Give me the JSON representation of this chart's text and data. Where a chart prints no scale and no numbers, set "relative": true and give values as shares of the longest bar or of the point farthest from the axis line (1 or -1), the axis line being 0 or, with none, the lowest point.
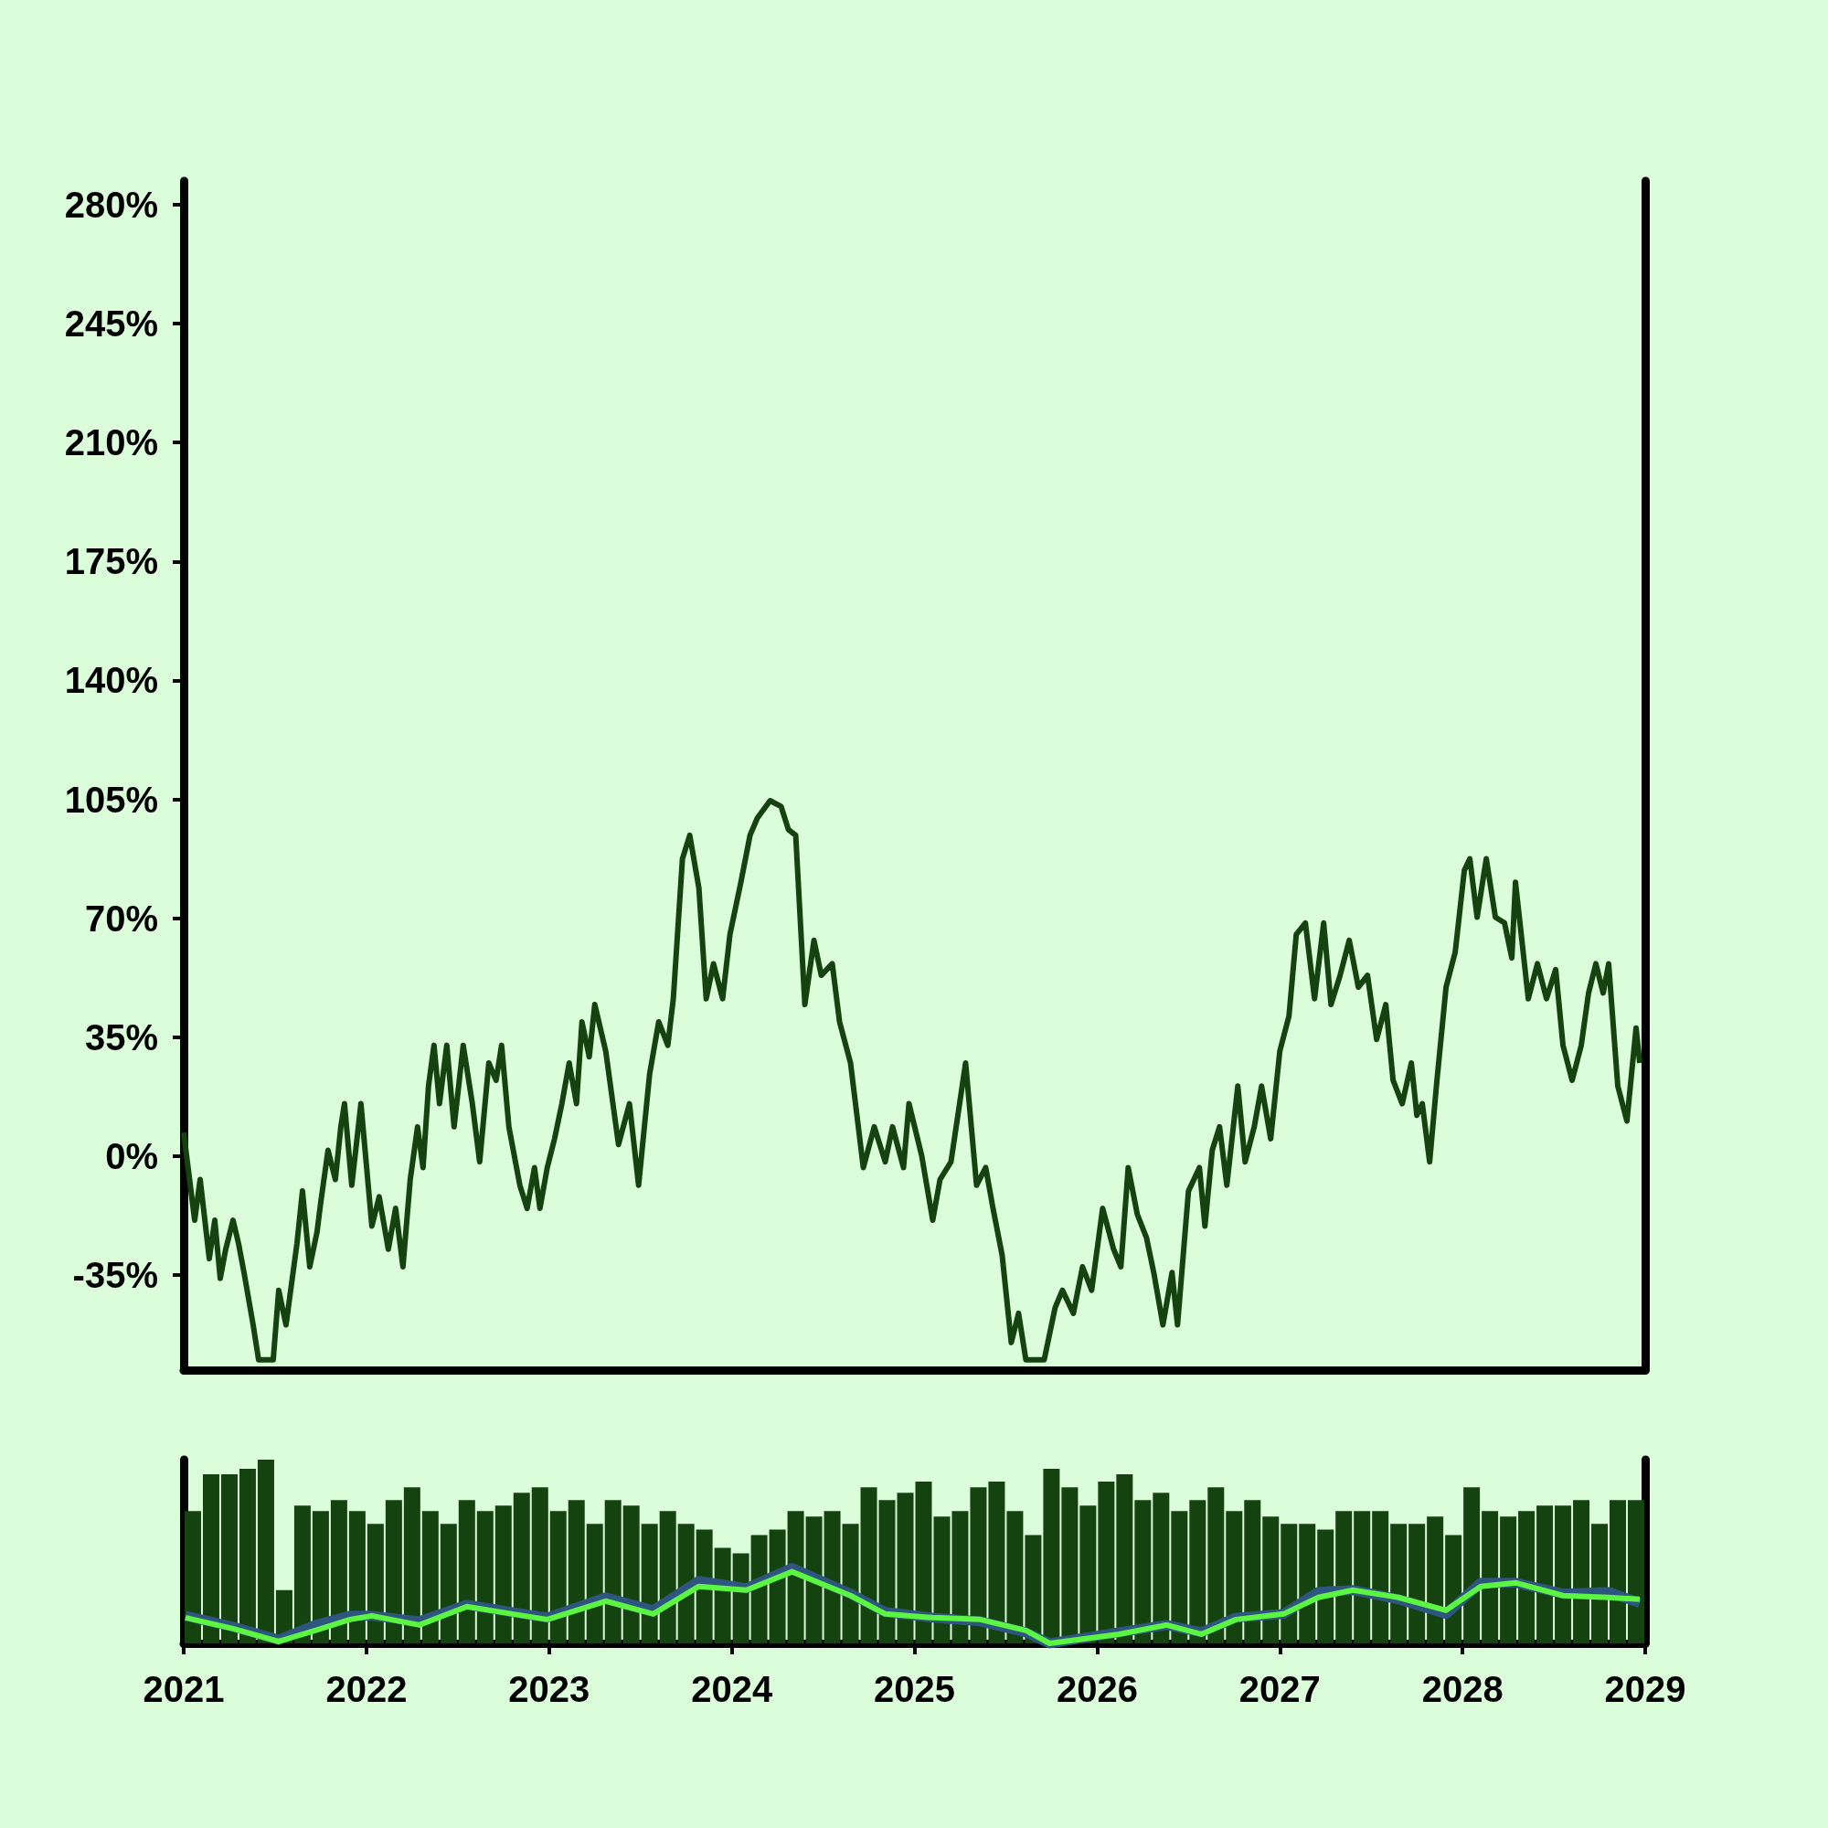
{
  "chart_data": [
    {
      "type": "line",
      "xlim": [
        2021,
        2029
      ],
      "ylim": [
        -63,
        287
      ],
      "tick_labels": "y",
      "yticks": [
        {
          "value": -35,
          "label": "-35%"
        },
        {
          "value": 0,
          "label": "0%"
        },
        {
          "value": 35,
          "label": "35%"
        },
        {
          "value": 70,
          "label": "70%"
        },
        {
          "value": 105,
          "label": "105%"
        },
        {
          "value": 140,
          "label": "140%"
        },
        {
          "value": 175,
          "label": "175%"
        },
        {
          "value": 210,
          "label": "210%"
        },
        {
          "value": 245,
          "label": "245%"
        },
        {
          "value": 280,
          "label": "280%"
        }
      ],
      "x": [
        2021.0,
        2021.06,
        2021.09,
        2021.14,
        2021.17,
        2021.2,
        2021.23,
        2021.27,
        2021.3,
        2021.33,
        2021.38,
        2021.41,
        2021.49,
        2021.52,
        2021.56,
        2021.62,
        2021.65,
        2021.69,
        2021.73,
        2021.75,
        2021.79,
        2021.83,
        2021.86,
        2021.88,
        2021.92,
        2021.97,
        2022.03,
        2022.07,
        2022.12,
        2022.16,
        2022.2,
        2022.24,
        2022.28,
        2022.31,
        2022.34,
        2022.37,
        2022.4,
        2022.44,
        2022.48,
        2022.53,
        2022.58,
        2022.62,
        2022.67,
        2022.71,
        2022.74,
        2022.78,
        2022.84,
        2022.88,
        2022.92,
        2022.95,
        2022.99,
        2023.03,
        2023.07,
        2023.11,
        2023.15,
        2023.18,
        2023.22,
        2023.25,
        2023.31,
        2023.38,
        2023.44,
        2023.49,
        2023.55,
        2023.6,
        2023.65,
        2023.68,
        2023.73,
        2023.77,
        2023.82,
        2023.86,
        2023.9,
        2023.95,
        2023.99,
        2024.05,
        2024.1,
        2024.14,
        2024.21,
        2024.27,
        2024.31,
        2024.35,
        2024.4,
        2024.45,
        2024.49,
        2024.55,
        2024.59,
        2024.65,
        2024.72,
        2024.78,
        2024.84,
        2024.88,
        2024.94,
        2024.97,
        2025.04,
        2025.1,
        2025.14,
        2025.2,
        2025.28,
        2025.34,
        2025.39,
        2025.43,
        2025.48,
        2025.53,
        2025.57,
        2025.61,
        2025.71,
        2025.77,
        2025.81,
        2025.87,
        2025.92,
        2025.97,
        2026.03,
        2026.09,
        2026.13,
        2026.17,
        2026.22,
        2026.27,
        2026.31,
        2026.36,
        2026.41,
        2026.44,
        2026.5,
        2026.56,
        2026.59,
        2026.63,
        2026.67,
        2026.71,
        2026.77,
        2026.81,
        2026.86,
        2026.9,
        2026.95,
        2027.0,
        2027.05,
        2027.09,
        2027.14,
        2027.19,
        2027.24,
        2027.28,
        2027.33,
        2027.38,
        2027.43,
        2027.48,
        2027.53,
        2027.58,
        2027.62,
        2027.67,
        2027.72,
        2027.75,
        2027.78,
        2027.82,
        2027.86,
        2027.91,
        2027.96,
        2028.01,
        2028.04,
        2028.08,
        2028.13,
        2028.18,
        2028.23,
        2028.27,
        2028.29,
        2028.36,
        2028.41,
        2028.46,
        2028.51,
        2028.55,
        2028.6,
        2028.65,
        2028.69,
        2028.73,
        2028.77,
        2028.8,
        2028.85,
        2028.9,
        2028.95,
        2028.97
      ],
      "series": [
        {
          "color": "#15430f",
          "values": [
            6.9,
            -18.9,
            -6.9,
            -30.2,
            -18.9,
            -36,
            -27.4,
            -18.9,
            -25.7,
            -34.3,
            -49.7,
            -60,
            -60,
            -39.5,
            -49.7,
            -25.7,
            -10.3,
            -32.6,
            -22.3,
            -13.7,
            1.7,
            -6.9,
            8.6,
            15.4,
            -8.6,
            15.4,
            -20.6,
            -12,
            -27.4,
            -15.4,
            -32.6,
            -6.9,
            8.6,
            -3.4,
            20.6,
            32.6,
            15.4,
            32.6,
            8.6,
            32.6,
            15.4,
            -1.7,
            27.4,
            22.3,
            32.6,
            8.6,
            -8.6,
            -15.4,
            -3.4,
            -15.4,
            -3.4,
            5.1,
            15.4,
            27.4,
            15.4,
            39.5,
            29.2,
            44.6,
            30.9,
            3.4,
            15.4,
            -8.6,
            24,
            39.5,
            32.6,
            46.3,
            87.5,
            94.4,
            78.9,
            46.3,
            56.6,
            46.3,
            65.2,
            80.6,
            94.4,
            99.5,
            104.6,
            102.9,
            96.1,
            94.4,
            44.6,
            63.5,
            53.2,
            56.6,
            39.5,
            27.4,
            -3.4,
            8.6,
            -1.7,
            8.6,
            -3.4,
            15.4,
            0,
            -18.9,
            -6.9,
            -1.7,
            27.4,
            -8.6,
            -3.4,
            -15.4,
            -29.2,
            -54.9,
            -46.3,
            -60,
            -60,
            -44.6,
            -39.5,
            -46.3,
            -32.6,
            -39.5,
            -15.4,
            -27.4,
            -32.6,
            -3.4,
            -17.2,
            -24,
            -34.3,
            -49.7,
            -34.3,
            -49.7,
            -10.3,
            -3.4,
            -20.6,
            1.7,
            8.6,
            -8.6,
            20.6,
            -1.7,
            8.6,
            20.6,
            5.1,
            30.9,
            41.2,
            65.2,
            68.6,
            46.3,
            68.6,
            44.6,
            53.2,
            63.5,
            49.7,
            53.2,
            34.3,
            44.6,
            22.3,
            15.4,
            27.4,
            12,
            15.4,
            -1.7,
            22.3,
            49.7,
            60,
            84.1,
            87.5,
            70.3,
            87.5,
            70.3,
            68.6,
            58.3,
            80.6,
            46.3,
            56.6,
            46.3,
            54.9,
            32.6,
            22.3,
            32.6,
            48,
            56.6,
            48,
            56.6,
            20.6,
            10.3,
            37.7,
            27.4
          ]
        }
      ]
    },
    {
      "type": "bar",
      "relative": true,
      "xlim": [
        2021,
        2029
      ],
      "xticks": [
        2021,
        2022,
        2023,
        2024,
        2025,
        2026,
        2027,
        2028,
        2029
      ],
      "tick_labels": "x",
      "x": [
        2021.05,
        2021.15,
        2021.25,
        2021.35,
        2021.45,
        2021.55,
        2021.65,
        2021.75,
        2021.85,
        2021.95,
        2022.05,
        2022.15,
        2022.25,
        2022.35,
        2022.45,
        2022.55,
        2022.65,
        2022.75,
        2022.85,
        2022.95,
        2023.05,
        2023.15,
        2023.25,
        2023.35,
        2023.45,
        2023.55,
        2023.65,
        2023.75,
        2023.85,
        2023.95,
        2024.05,
        2024.15,
        2024.25,
        2024.35,
        2024.45,
        2024.55,
        2024.65,
        2024.75,
        2024.85,
        2024.95,
        2025.05,
        2025.15,
        2025.25,
        2025.35,
        2025.45,
        2025.55,
        2025.65,
        2025.75,
        2025.85,
        2025.95,
        2026.05,
        2026.15,
        2026.25,
        2026.35,
        2026.45,
        2026.55,
        2026.65,
        2026.75,
        2026.85,
        2026.95,
        2027.05,
        2027.15,
        2027.25,
        2027.35,
        2027.45,
        2027.55,
        2027.65,
        2027.75,
        2027.85,
        2027.95,
        2028.05,
        2028.15,
        2028.25,
        2028.35,
        2028.45,
        2028.55,
        2028.65,
        2028.75,
        2028.85,
        2028.95
      ],
      "series": [
        {
          "color": "#15430f",
          "values": [
            0.72,
            0.92,
            0.92,
            0.95,
            1,
            0.29,
            0.75,
            0.72,
            0.78,
            0.72,
            0.65,
            0.78,
            0.85,
            0.72,
            0.65,
            0.78,
            0.72,
            0.75,
            0.82,
            0.85,
            0.72,
            0.78,
            0.65,
            0.78,
            0.75,
            0.65,
            0.72,
            0.65,
            0.62,
            0.52,
            0.49,
            0.59,
            0.62,
            0.72,
            0.69,
            0.72,
            0.65,
            0.85,
            0.78,
            0.82,
            0.88,
            0.69,
            0.72,
            0.85,
            0.88,
            0.72,
            0.59,
            0.95,
            0.85,
            0.75,
            0.88,
            0.92,
            0.78,
            0.82,
            0.72,
            0.78,
            0.85,
            0.72,
            0.78,
            0.69,
            0.65,
            0.65,
            0.62,
            0.72,
            0.72,
            0.72,
            0.65,
            0.65,
            0.69,
            0.59,
            0.85,
            0.72,
            0.69,
            0.72,
            0.75,
            0.75,
            0.78,
            0.65,
            0.78,
            0.78
          ]
        },
        {
          "type": "line",
          "color": "#2e5580",
          "x": [
            2021.01,
            2021.27,
            2021.52,
            2021.72,
            2021.91,
            2022.03,
            2022.29,
            2022.55,
            2022.8,
            2022.99,
            2023.31,
            2023.57,
            2023.82,
            2024.08,
            2024.33,
            2024.65,
            2024.84,
            2025.1,
            2025.36,
            2025.61,
            2025.74,
            2026.12,
            2026.38,
            2026.57,
            2026.76,
            2027.02,
            2027.21,
            2027.4,
            2027.65,
            2027.91,
            2028.1,
            2028.29,
            2028.55,
            2028.8,
            2028.97
          ],
          "values": [
            0.15,
            0.09,
            0.02,
            0.1,
            0.15,
            0.15,
            0.12,
            0.21,
            0.17,
            0.14,
            0.25,
            0.18,
            0.34,
            0.3,
            0.41,
            0.27,
            0.17,
            0.14,
            0.12,
            0.06,
            0,
            0.06,
            0.1,
            0.06,
            0.14,
            0.16,
            0.28,
            0.29,
            0.24,
            0.16,
            0.33,
            0.33,
            0.27,
            0.28,
            0.22
          ]
        },
        {
          "type": "line",
          "color": "#5cf542",
          "x": [
            2021.01,
            2021.27,
            2021.52,
            2021.72,
            2021.91,
            2022.03,
            2022.29,
            2022.55,
            2022.8,
            2022.99,
            2023.31,
            2023.57,
            2023.82,
            2024.08,
            2024.33,
            2024.65,
            2024.84,
            2025.1,
            2025.36,
            2025.61,
            2025.74,
            2026.12,
            2026.38,
            2026.57,
            2026.76,
            2027.02,
            2027.21,
            2027.4,
            2027.65,
            2027.91,
            2028.1,
            2028.29,
            2028.55,
            2028.8,
            2028.97
          ],
          "values": [
            0.14,
            0.08,
            0.01,
            0.07,
            0.13,
            0.15,
            0.1,
            0.2,
            0.16,
            0.13,
            0.23,
            0.16,
            0.31,
            0.29,
            0.39,
            0.26,
            0.16,
            0.14,
            0.13,
            0.07,
            0,
            0.05,
            0.1,
            0.05,
            0.13,
            0.16,
            0.25,
            0.29,
            0.25,
            0.18,
            0.31,
            0.33,
            0.26,
            0.25,
            0.24
          ]
        }
      ]
    }
  ]
}
